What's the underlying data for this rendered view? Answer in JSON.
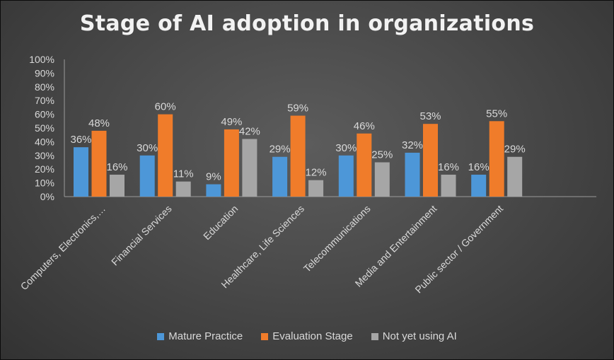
{
  "chart_data": {
    "type": "bar",
    "title": "Stage of AI adoption in organizations",
    "categories": [
      "Computers, Electronics,…",
      "Financial Services",
      "Education",
      "Healthcare, Life Sciences",
      "Telecommunications",
      "Media and Entertainment",
      "Public sector / Government"
    ],
    "series": [
      {
        "name": "Mature Practice",
        "values": [
          36,
          30,
          9,
          29,
          30,
          32,
          16
        ],
        "color": "#4d97d8"
      },
      {
        "name": "Evaluation Stage",
        "values": [
          48,
          60,
          49,
          59,
          46,
          53,
          55
        ],
        "color": "#f07c2a"
      },
      {
        "name": "Not yet using AI",
        "values": [
          16,
          11,
          42,
          12,
          25,
          16,
          29
        ],
        "color": "#a6a6a6"
      }
    ],
    "value_suffix": "%",
    "ylim": [
      0,
      100
    ],
    "yticks": [
      "0%",
      "10%",
      "20%",
      "30%",
      "40%",
      "50%",
      "60%",
      "70%",
      "80%",
      "90%",
      "100%"
    ],
    "grid": false,
    "legend": "bottom"
  }
}
